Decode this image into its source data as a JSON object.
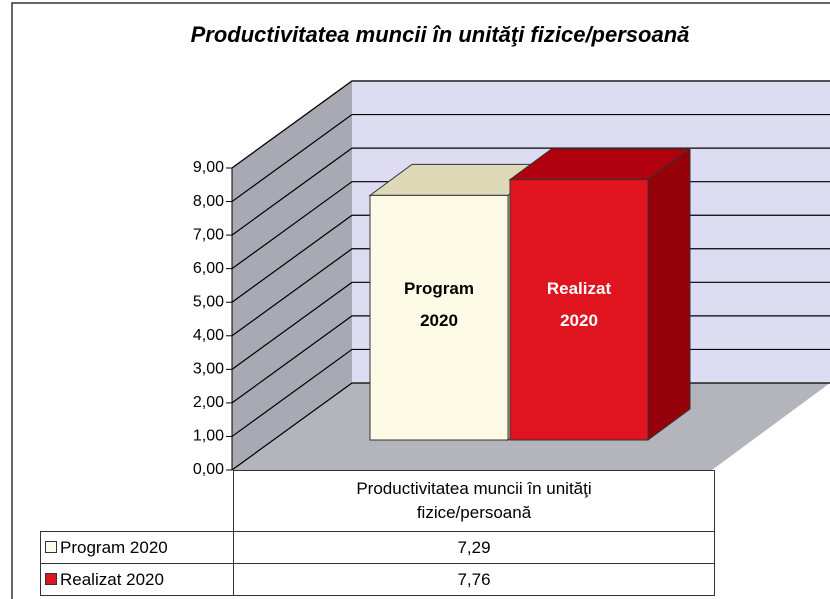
{
  "chart_data": {
    "type": "bar3d",
    "title": "Productivitatea muncii în unităţi fizice/persoană",
    "categories": [
      "Productivitatea muncii în unităţi fizice/persoană"
    ],
    "series": [
      {
        "name": "Program 2020",
        "color": "#fdfbe6",
        "values": [
          7.29
        ],
        "value_labels": [
          "7,29"
        ]
      },
      {
        "name": "Realizat 2020",
        "color": "#e0141e",
        "values": [
          7.76
        ],
        "value_labels": [
          "7,76"
        ]
      }
    ],
    "ylim": [
      0,
      9
    ],
    "yticks": [
      {
        "value": 0,
        "label": "0,00"
      },
      {
        "value": 1,
        "label": "1,00"
      },
      {
        "value": 2,
        "label": "2,00"
      },
      {
        "value": 3,
        "label": "3,00"
      },
      {
        "value": 4,
        "label": "4,00"
      },
      {
        "value": 5,
        "label": "5,00"
      },
      {
        "value": 6,
        "label": "6,00"
      },
      {
        "value": 7,
        "label": "7,00"
      },
      {
        "value": 8,
        "label": "8,00"
      },
      {
        "value": 9,
        "label": "9,00"
      }
    ],
    "grid": true
  }
}
